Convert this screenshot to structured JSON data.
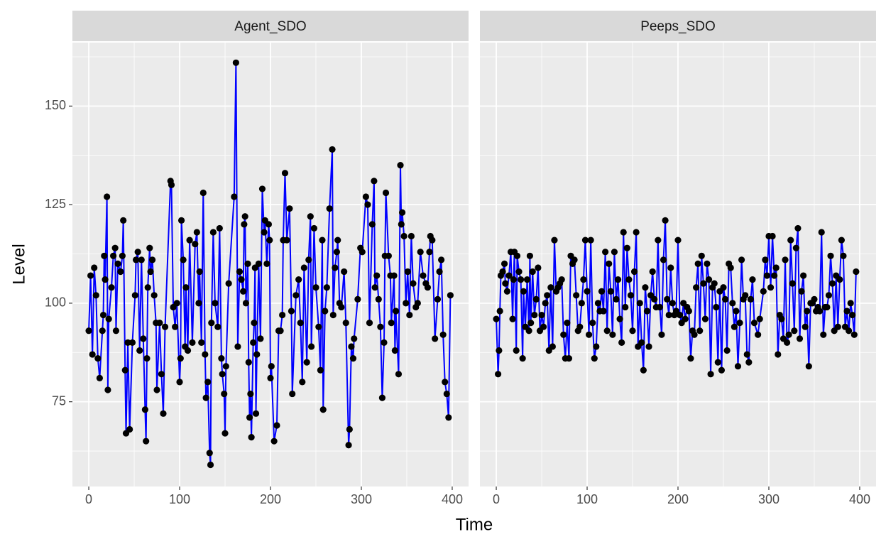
{
  "chart_data": {
    "type": "line",
    "x_label": "Time",
    "y_label": "Level",
    "xlim": [
      -18,
      418
    ],
    "ylim": [
      53.5,
      166.1
    ],
    "xticks": [
      0,
      100,
      200,
      300,
      400
    ],
    "yticks": [
      75,
      100,
      125,
      150
    ],
    "grid": true,
    "panels": [
      {
        "title": "Agent_SDO",
        "series": [
          {
            "line_color": "#0000ff",
            "point_color": "#000000",
            "x": [
              0,
              2,
              4,
              6,
              8,
              10,
              12,
              15,
              16,
              17,
              18,
              20,
              21,
              22,
              25,
              27,
              29,
              30,
              32,
              35,
              37,
              38,
              40,
              41,
              43,
              45,
              48,
              51,
              52,
              54,
              56,
              58,
              60,
              62,
              63,
              64,
              65,
              67,
              68,
              70,
              72,
              74,
              75,
              78,
              80,
              82,
              84,
              90,
              91,
              93,
              95,
              97,
              100,
              101,
              102,
              104,
              106,
              107,
              109,
              111,
              114,
              117,
              119,
              121,
              122,
              124,
              126,
              128,
              129,
              131,
              133,
              134,
              135,
              137,
              139,
              142,
              144,
              146,
              147,
              149,
              150,
              151,
              154,
              160,
              162,
              164,
              166,
              168,
              170,
              171,
              172,
              173,
              175,
              176,
              177,
              178,
              179,
              181,
              182,
              183,
              184,
              185,
              187,
              189,
              191,
              193,
              194,
              196,
              198,
              199,
              200,
              201,
              204,
              207,
              209,
              211,
              213,
              214,
              216,
              218,
              221,
              223,
              224,
              228,
              231,
              233,
              235,
              237,
              240,
              242,
              244,
              245,
              248,
              250,
              253,
              255,
              257,
              258,
              260,
              262,
              265,
              268,
              269,
              271,
              273,
              274,
              276,
              278,
              281,
              283,
              286,
              287,
              289,
              291,
              292,
              296,
              299,
              301,
              305,
              307,
              309,
              312,
              314,
              315,
              317,
              319,
              321,
              323,
              325,
              326,
              327,
              330,
              332,
              333,
              336,
              337,
              338,
              341,
              343,
              344,
              345,
              347,
              349,
              351,
              353,
              355,
              357,
              360,
              362,
              365,
              368,
              371,
              373,
              375,
              376,
              378,
              381,
              384,
              386,
              388,
              390,
              392,
              394,
              396,
              398
            ],
            "values": [
              93,
              107,
              87,
              109,
              102,
              86,
              81,
              93,
              97,
              112,
              106,
              127,
              78,
              96,
              104,
              112,
              114,
              93,
              110,
              108,
              112,
              121,
              83,
              67,
              90,
              68,
              90,
              102,
              111,
              113,
              88,
              111,
              91,
              73,
              65,
              86,
              104,
              114,
              108,
              111,
              102,
              95,
              78,
              95,
              82,
              72,
              94,
              131,
              130,
              99,
              94,
              100,
              80,
              86,
              121,
              111,
              89,
              104,
              88,
              116,
              90,
              115,
              118,
              100,
              108,
              90,
              128,
              87,
              76,
              80,
              62,
              59,
              95,
              118,
              100,
              94,
              119,
              86,
              82,
              77,
              67,
              84,
              105,
              127,
              161,
              89,
              108,
              106,
              103,
              120,
              122,
              100,
              110,
              85,
              71,
              77,
              66,
              90,
              95,
              109,
              72,
              87,
              110,
              91,
              129,
              118,
              121,
              110,
              120,
              116,
              81,
              84,
              65,
              69,
              93,
              93,
              97,
              116,
              133,
              116,
              124,
              98,
              77,
              102,
              106,
              95,
              80,
              109,
              85,
              111,
              122,
              89,
              119,
              104,
              94,
              83,
              116,
              73,
              98,
              104,
              124,
              139,
              97,
              109,
              113,
              116,
              100,
              99,
              108,
              95,
              64,
              68,
              89,
              86,
              91,
              101,
              114,
              113,
              127,
              125,
              95,
              120,
              131,
              104,
              107,
              101,
              94,
              76,
              90,
              112,
              128,
              112,
              107,
              95,
              107,
              88,
              98,
              82,
              135,
              120,
              123,
              117,
              100,
              108,
              97,
              117,
              105,
              99,
              100,
              113,
              107,
              105,
              104,
              113,
              117,
              116,
              91,
              101,
              108,
              111,
              92,
              80,
              77,
              71,
              102
            ]
          }
        ]
      },
      {
        "title": "Peeps_SDO",
        "series": [
          {
            "line_color": "#0000ff",
            "point_color": "#000000",
            "x": [
              0,
              2,
              3,
              4,
              5,
              7,
              9,
              10,
              12,
              14,
              16,
              18,
              19,
              20,
              22,
              23,
              25,
              27,
              29,
              30,
              32,
              34,
              36,
              37,
              38,
              40,
              42,
              44,
              46,
              48,
              50,
              52,
              54,
              56,
              58,
              60,
              62,
              64,
              66,
              68,
              70,
              72,
              74,
              76,
              78,
              80,
              82,
              84,
              86,
              88,
              90,
              92,
              94,
              96,
              98,
              100,
              102,
              104,
              106,
              108,
              110,
              112,
              114,
              116,
              118,
              120,
              122,
              124,
              126,
              128,
              130,
              132,
              134,
              136,
              138,
              140,
              142,
              144,
              146,
              148,
              150,
              152,
              154,
              156,
              158,
              160,
              162,
              164,
              166,
              168,
              170,
              172,
              174,
              176,
              178,
              180,
              182,
              184,
              186,
              188,
              190,
              192,
              194,
              196,
              198,
              200,
              202,
              204,
              206,
              208,
              210,
              212,
              214,
              216,
              218,
              220,
              222,
              224,
              226,
              228,
              230,
              232,
              234,
              236,
              238,
              240,
              242,
              244,
              246,
              248,
              250,
              252,
              254,
              256,
              258,
              260,
              262,
              264,
              266,
              268,
              270,
              272,
              274,
              276,
              278,
              280,
              282,
              284,
              288,
              290,
              294,
              296,
              298,
              300,
              302,
              304,
              306,
              308,
              310,
              312,
              314,
              316,
              318,
              320,
              322,
              324,
              326,
              328,
              330,
              332,
              334,
              336,
              338,
              340,
              342,
              344,
              346,
              348,
              350,
              352,
              354,
              356,
              358,
              360,
              362,
              364,
              366,
              368,
              370,
              372,
              374,
              376,
              378,
              380,
              382,
              384,
              386,
              388,
              390,
              392,
              394,
              396
            ],
            "values": [
              96,
              82,
              88,
              98,
              107,
              108,
              110,
              105,
              103,
              107,
              113,
              96,
              106,
              113,
              88,
              112,
              108,
              106,
              86,
              103,
              94,
              106,
              93,
              112,
              95,
              108,
              97,
              101,
              109,
              93,
              97,
              94,
              100,
              102,
              88,
              104,
              89,
              116,
              103,
              104,
              105,
              106,
              92,
              86,
              95,
              86,
              112,
              110,
              111,
              102,
              93,
              94,
              100,
              106,
              116,
              103,
              92,
              116,
              95,
              86,
              89,
              100,
              98,
              103,
              98,
              113,
              93,
              110,
              103,
              92,
              113,
              101,
              106,
              96,
              90,
              118,
              99,
              114,
              106,
              102,
              93,
              108,
              118,
              89,
              100,
              90,
              83,
              104,
              98,
              89,
              102,
              108,
              101,
              99,
              116,
              99,
              92,
              111,
              121,
              101,
              97,
              109,
              100,
              97,
              98,
              116,
              97,
              95,
              100,
              96,
              99,
              98,
              86,
              93,
              92,
              104,
              110,
              93,
              112,
              105,
              96,
              110,
              106,
              82,
              104,
              105,
              99,
              85,
              103,
              83,
              104,
              101,
              88,
              110,
              109,
              100,
              94,
              98,
              84,
              95,
              111,
              101,
              102,
              87,
              85,
              101,
              106,
              95,
              92,
              96,
              103,
              111,
              107,
              117,
              104,
              117,
              107,
              109,
              87,
              97,
              96,
              91,
              111,
              90,
              92,
              116,
              105,
              93,
              114,
              119,
              91,
              103,
              107,
              94,
              98,
              84,
              100,
              100,
              101,
              98,
              99,
              98,
              118,
              92,
              99,
              99,
              102,
              112,
              105,
              93,
              107,
              94,
              106,
              116,
              112,
              94,
              98,
              93,
              100,
              97,
              92,
              108
            ]
          }
        ]
      }
    ]
  }
}
